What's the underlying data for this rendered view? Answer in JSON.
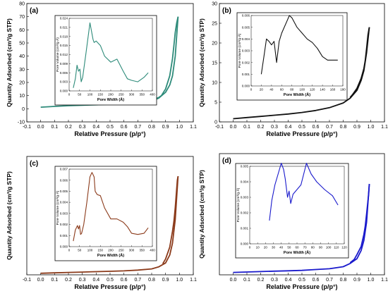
{
  "chart_data": [
    {
      "type": "line",
      "panel": "(a)",
      "xlabel": "Relative Pressure (p/p°)",
      "ylabel": "Quantity Adsorbed (cm³/g STP)",
      "xlim": [
        -0.1,
        1.1
      ],
      "ylim": [
        -10,
        80
      ],
      "xticks": [
        "-0.1",
        "0.0",
        "0.1",
        "0.2",
        "0.3",
        "0.4",
        "0.5",
        "0.6",
        "0.7",
        "0.8",
        "0.9",
        "1.0",
        "1.1"
      ],
      "yticks": [
        "-10",
        "0",
        "10",
        "20",
        "30",
        "40",
        "50",
        "60",
        "70",
        "80"
      ],
      "color": "#2e8b7a",
      "series": [
        {
          "x": [
            0.0,
            0.1,
            0.2,
            0.3,
            0.4,
            0.5,
            0.6,
            0.7,
            0.75,
            0.8,
            0.85,
            0.9,
            0.93,
            0.95,
            0.97,
            0.99
          ],
          "y": [
            1.2,
            1.8,
            2.3,
            2.7,
            3.0,
            3.4,
            3.8,
            4.4,
            5.0,
            6.0,
            8.0,
            12.5,
            18.0,
            25.0,
            40.0,
            70.0
          ]
        },
        {
          "x": [
            0.99,
            0.98,
            0.97,
            0.96,
            0.95,
            0.93,
            0.9,
            0.87,
            0.85,
            0.8
          ],
          "y": [
            70.0,
            65.0,
            58.0,
            48.0,
            38.0,
            25.0,
            15.0,
            10.0,
            8.5,
            6.5
          ]
        }
      ],
      "inset": {
        "xlabel": "Pore Width (Å)",
        "ylabel": "Pore Volume (cm³/g·Å)",
        "xlim": [
          0,
          400
        ],
        "ylim": [
          0,
          0.024
        ],
        "xticks": [
          "0",
          "50",
          "100",
          "150",
          "200",
          "250",
          "300",
          "350",
          "400"
        ],
        "yticks": [
          "0.000",
          "0.003",
          "0.006",
          "0.009",
          "0.012",
          "0.015",
          "0.018",
          "0.021",
          "0.024"
        ],
        "x": [
          20,
          30,
          38,
          45,
          52,
          58,
          65,
          80,
          100,
          115,
          120,
          130,
          150,
          170,
          200,
          230,
          260,
          280,
          300,
          330,
          360,
          380
        ],
        "y": [
          0.001,
          0.004,
          0.0085,
          0.0065,
          0.0072,
          0.003,
          0.0045,
          0.012,
          0.0225,
          0.017,
          0.016,
          0.0165,
          0.015,
          0.0115,
          0.0095,
          0.0105,
          0.0065,
          0.004,
          0.0035,
          0.003,
          0.0045,
          0.006
        ]
      }
    },
    {
      "type": "line",
      "panel": "(b)",
      "xlabel": "Relative Pressure (p/p°)",
      "ylabel": "Quantity Adsorbed (cm³/g STP)",
      "xlim": [
        -0.1,
        1.1
      ],
      "ylim": [
        0,
        30
      ],
      "xticks": [
        "-0.1",
        "0.0",
        "0.1",
        "0.2",
        "0.3",
        "0.4",
        "0.5",
        "0.6",
        "0.7",
        "0.8",
        "0.9",
        "1.0",
        "1.1"
      ],
      "yticks": [
        "0",
        "5",
        "10",
        "15",
        "20",
        "25",
        "30"
      ],
      "color": "#111111",
      "series": [
        {
          "x": [
            0.0,
            0.1,
            0.2,
            0.3,
            0.4,
            0.5,
            0.6,
            0.7,
            0.8,
            0.85,
            0.9,
            0.93,
            0.95,
            0.97,
            0.99
          ],
          "y": [
            0.8,
            1.1,
            1.4,
            1.7,
            2.0,
            2.4,
            2.9,
            3.6,
            4.8,
            6.0,
            8.0,
            10.5,
            13.0,
            17.5,
            24.0
          ]
        },
        {
          "x": [
            0.99,
            0.98,
            0.97,
            0.96,
            0.95,
            0.93,
            0.9,
            0.87,
            0.85
          ],
          "y": [
            24.0,
            22.0,
            18.5,
            15.5,
            13.5,
            11.0,
            8.5,
            7.0,
            6.2
          ]
        }
      ],
      "inset": {
        "xlabel": "Pore Width (Å)",
        "ylabel": "Pore Volume (cm³/g·Å)",
        "xlim": [
          0,
          180
        ],
        "ylim": [
          0,
          0.006
        ],
        "xticks": [
          "0",
          "20",
          "40",
          "60",
          "80",
          "100",
          "120",
          "140",
          "160",
          "180"
        ],
        "yticks": [
          "0.000",
          "0.001",
          "0.002",
          "0.003",
          "0.004",
          "0.005",
          "0.006"
        ],
        "x": [
          20,
          25,
          30,
          35,
          40,
          45,
          50,
          55,
          60,
          70,
          75,
          80,
          90,
          100,
          110,
          120,
          130,
          140,
          150,
          160,
          170
        ],
        "y": [
          0.001,
          0.0025,
          0.004,
          0.0038,
          0.0035,
          0.0038,
          0.002,
          0.0038,
          0.0045,
          0.0055,
          0.006,
          0.0058,
          0.005,
          0.0045,
          0.004,
          0.0037,
          0.0032,
          0.0025,
          0.0022,
          0.0022,
          0.0022
        ]
      }
    },
    {
      "type": "line",
      "panel": "(c)",
      "xlabel": "Relative Pressure (p/p°)",
      "ylabel": "Quantity Adsorbed (cm³/g STP)",
      "xlim": [
        -0.1,
        1.1
      ],
      "ylim": [
        0,
        30
      ],
      "xticks": [
        "-0.1",
        "0.0",
        "0.1",
        "0.2",
        "0.3",
        "0.4",
        "0.5",
        "0.6",
        "0.7",
        "0.8",
        "0.9",
        "1.0",
        "1.1"
      ],
      "yticks": [],
      "color": "#8b3a1a",
      "series": [
        {
          "x": [
            0.0,
            0.1,
            0.2,
            0.3,
            0.4,
            0.5,
            0.6,
            0.7,
            0.8,
            0.85,
            0.9,
            0.93,
            0.95,
            0.97,
            0.99
          ],
          "y": [
            0.4,
            0.5,
            0.6,
            0.7,
            0.8,
            0.9,
            1.0,
            1.2,
            1.5,
            2.0,
            3.0,
            5.0,
            8.0,
            14.0,
            25.0
          ]
        },
        {
          "x": [
            0.99,
            0.985,
            0.97,
            0.96,
            0.95,
            0.93,
            0.9,
            0.88
          ],
          "y": [
            25.0,
            24.0,
            17.0,
            13.5,
            11.0,
            7.0,
            4.0,
            2.8
          ]
        }
      ],
      "inset": {
        "xlabel": "Pore Width (Å)",
        "ylabel": "Pore Volume (cm³/g·Å)",
        "xlim": [
          0,
          400
        ],
        "ylim": [
          0,
          0.007
        ],
        "xticks": [
          "0",
          "50",
          "100",
          "150",
          "200",
          "250",
          "300",
          "350",
          "400"
        ],
        "yticks": [
          "0.000",
          "0.001",
          "0.002",
          "0.003",
          "0.004",
          "0.005",
          "0.006",
          "0.007"
        ],
        "x": [
          20,
          30,
          40,
          45,
          50,
          55,
          60,
          70,
          85,
          100,
          110,
          120,
          125,
          135,
          150,
          170,
          200,
          230,
          260,
          280,
          300,
          330,
          360,
          380
        ],
        "y": [
          0.0005,
          0.0015,
          0.0019,
          0.0016,
          0.0019,
          0.0011,
          0.0012,
          0.002,
          0.004,
          0.0063,
          0.0067,
          0.0063,
          0.005,
          0.0047,
          0.0046,
          0.0035,
          0.0025,
          0.0025,
          0.0022,
          0.0018,
          0.0012,
          0.0011,
          0.0012,
          0.0017
        ]
      }
    },
    {
      "type": "line",
      "panel": "(d)",
      "xlabel": "Relative Pressure (p/p°)",
      "ylabel": "Quantity Adsorbed (cm³/g STP)",
      "xlim": [
        -0.1,
        1.1
      ],
      "ylim": [
        0,
        30
      ],
      "xticks": [
        "0.0",
        "0.1",
        "0.2",
        "0.3",
        "0.4",
        "0.5",
        "0.6",
        "0.7",
        "0.8",
        "0.9",
        "1.0",
        "1.1"
      ],
      "yticks": [],
      "color": "#1a1acc",
      "series": [
        {
          "x": [
            0.0,
            0.1,
            0.2,
            0.3,
            0.4,
            0.5,
            0.6,
            0.7,
            0.8,
            0.85,
            0.9,
            0.93,
            0.95,
            0.97,
            0.99
          ],
          "y": [
            0.6,
            0.7,
            0.8,
            0.9,
            1.0,
            1.1,
            1.3,
            1.5,
            2.0,
            2.8,
            4.0,
            6.0,
            8.5,
            13.0,
            22.5
          ]
        },
        {
          "x": [
            0.99,
            0.985,
            0.97,
            0.96,
            0.95,
            0.93,
            0.9,
            0.88,
            0.85
          ],
          "y": [
            22.5,
            20.0,
            15.0,
            12.0,
            10.0,
            7.0,
            5.0,
            3.8,
            3.0
          ]
        }
      ],
      "inset": {
        "xlabel": "Pore Width (Å)",
        "ylabel": "Pore Volume (cm³/g·Å)",
        "xlim": [
          0,
          120
        ],
        "ylim": [
          0,
          0.005
        ],
        "xticks": [
          "0",
          "10",
          "20",
          "30",
          "40",
          "50",
          "60",
          "70",
          "80",
          "90",
          "100",
          "110",
          "120"
        ],
        "yticks": [
          "0.000",
          "0.001",
          "0.002",
          "0.003",
          "0.004",
          "0.005"
        ],
        "x": [
          25,
          28,
          32,
          36,
          40,
          43,
          45,
          48,
          50,
          52,
          55,
          60,
          65,
          70,
          72,
          78,
          85,
          95,
          105,
          112
        ],
        "y": [
          0.0015,
          0.0028,
          0.0038,
          0.0045,
          0.0052,
          0.0048,
          0.0042,
          0.003,
          0.0034,
          0.0026,
          0.0032,
          0.0035,
          0.0038,
          0.0048,
          0.0052,
          0.0045,
          0.004,
          0.0035,
          0.0031,
          0.0025
        ]
      }
    }
  ]
}
